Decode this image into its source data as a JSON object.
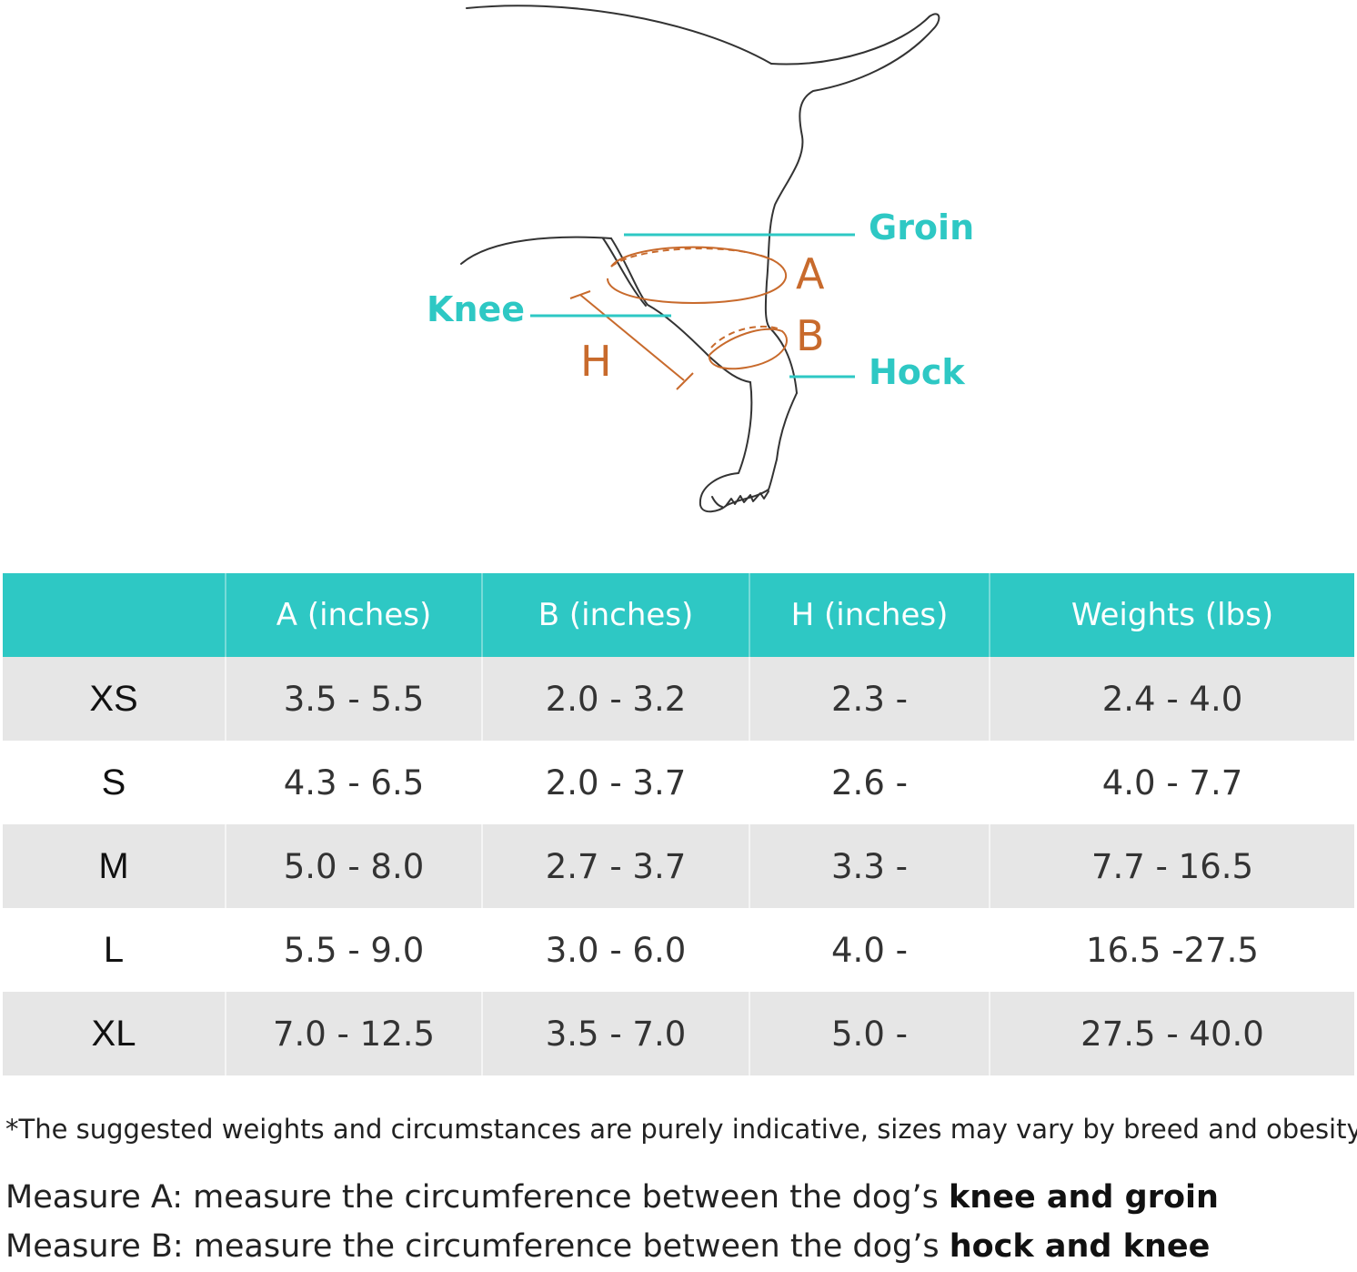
{
  "colors": {
    "teal": "#2ec8c4",
    "orange": "#c86a2c",
    "outline": "#333333",
    "row_shade": "#e6e6e6"
  },
  "diagram": {
    "labels": {
      "groin": "Groin",
      "knee": "Knee",
      "hock": "Hock",
      "a": "A",
      "b": "B",
      "h": "H"
    }
  },
  "table": {
    "headers": [
      "",
      "A (inches)",
      "B (inches)",
      "H (inches)",
      "Weights (lbs)"
    ],
    "rows": [
      {
        "size": "XS",
        "a": "3.5 - 5.5",
        "b": "2.0 - 3.2",
        "h": "2.3 -",
        "weight": "2.4 - 4.0"
      },
      {
        "size": "S",
        "a": "4.3 - 6.5",
        "b": "2.0 - 3.7",
        "h": "2.6 -",
        "weight": "4.0 - 7.7"
      },
      {
        "size": "M",
        "a": "5.0 - 8.0",
        "b": "2.7 - 3.7",
        "h": "3.3 -",
        "weight": "7.7 - 16.5"
      },
      {
        "size": "L",
        "a": "5.5 - 9.0",
        "b": "3.0 - 6.0",
        "h": "4.0 -",
        "weight": "16.5 -27.5"
      },
      {
        "size": "XL",
        "a": "7.0 - 12.5",
        "b": "3.5 - 7.0",
        "h": "5.0 -",
        "weight": "27.5 - 40.0"
      }
    ]
  },
  "footnote": "*The suggested weights and circumstances are purely indicative, sizes may vary by breed and obesity.",
  "measures": {
    "a_prefix": "Measure A: measure the circumference between the dog’s ",
    "a_bold": "knee and groin",
    "b_prefix": "Measure B: measure the circumference between the dog’s ",
    "b_bold": "hock and knee"
  }
}
